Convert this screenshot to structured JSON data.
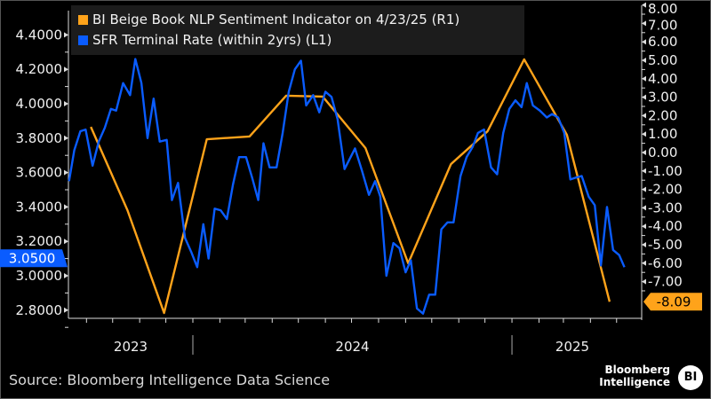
{
  "chart_data": {
    "type": "line",
    "title": "",
    "x_tick_labels": [
      "2023",
      "2024",
      "2025"
    ],
    "left_axis": {
      "ticks": [
        "4.4000",
        "4.2000",
        "4.0000",
        "3.8000",
        "3.6000",
        "3.4000",
        "3.2000",
        "3.0000",
        "2.8000"
      ],
      "range": [
        2.75,
        4.5
      ]
    },
    "right_axis": {
      "ticks": [
        "8.00",
        "7.00",
        "6.00",
        "5.00",
        "4.00",
        "3.00",
        "2.00",
        "1.00",
        "0.00",
        "-1.00",
        "-2.00",
        "-3.00",
        "-4.00",
        "-5.00",
        "-6.00",
        "-7.00"
      ],
      "range": [
        -9,
        8
      ]
    },
    "legend_position": "top-left",
    "grid": false,
    "series": [
      {
        "name": "BI Beige Book NLP Sentiment Indicator on 4/23/25 (R1)",
        "axis": "right",
        "color": "#ffa31a",
        "last_value_label": "-8.09",
        "points": [
          [
            "2023-09-06",
            1.39
          ],
          [
            "2023-10-18",
            -3.13
          ],
          [
            "2023-11-29",
            -8.7
          ],
          [
            "2024-01-17",
            0.72
          ],
          [
            "2024-03-06",
            0.87
          ],
          [
            "2024-04-17",
            3.08
          ],
          [
            "2024-05-29",
            3.03
          ],
          [
            "2024-07-17",
            0.24
          ],
          [
            "2024-09-04",
            -6.01
          ],
          [
            "2024-10-23",
            -0.63
          ],
          [
            "2024-12-04",
            1.15
          ],
          [
            "2025-01-15",
            5.05
          ],
          [
            "2025-03-05",
            0.96
          ],
          [
            "2025-04-23",
            -8.09
          ]
        ]
      },
      {
        "name": "SFR Terminal Rate (within 2yrs) (L1)",
        "axis": "left",
        "color": "#0a5cff",
        "last_value_label": "3.0500",
        "points": [
          [
            "2023-08-12",
            3.55
          ],
          [
            "2023-08-18",
            3.73
          ],
          [
            "2023-08-25",
            3.84
          ],
          [
            "2023-08-31",
            3.85
          ],
          [
            "2023-09-08",
            3.64
          ],
          [
            "2023-09-15",
            3.78
          ],
          [
            "2023-09-22",
            3.86
          ],
          [
            "2023-09-29",
            3.97
          ],
          [
            "2023-10-05",
            3.96
          ],
          [
            "2023-10-13",
            4.12
          ],
          [
            "2023-10-21",
            4.05
          ],
          [
            "2023-10-27",
            4.26
          ],
          [
            "2023-11-03",
            4.12
          ],
          [
            "2023-11-10",
            3.8
          ],
          [
            "2023-11-17",
            4.03
          ],
          [
            "2023-11-24",
            3.78
          ],
          [
            "2023-12-02",
            3.79
          ],
          [
            "2023-12-08",
            3.44
          ],
          [
            "2023-12-15",
            3.54
          ],
          [
            "2023-12-23",
            3.22
          ],
          [
            "2023-12-30",
            3.14
          ],
          [
            "2024-01-06",
            3.05
          ],
          [
            "2024-01-13",
            3.3
          ],
          [
            "2024-01-19",
            3.1
          ],
          [
            "2024-01-26",
            3.39
          ],
          [
            "2024-02-02",
            3.38
          ],
          [
            "2024-02-09",
            3.33
          ],
          [
            "2024-02-16",
            3.53
          ],
          [
            "2024-02-23",
            3.69
          ],
          [
            "2024-03-02",
            3.69
          ],
          [
            "2024-03-09",
            3.57
          ],
          [
            "2024-03-16",
            3.44
          ],
          [
            "2024-03-22",
            3.77
          ],
          [
            "2024-03-29",
            3.63
          ],
          [
            "2024-04-06",
            3.63
          ],
          [
            "2024-04-13",
            3.83
          ],
          [
            "2024-04-20",
            4.07
          ],
          [
            "2024-04-27",
            4.2
          ],
          [
            "2024-05-04",
            4.25
          ],
          [
            "2024-05-10",
            3.99
          ],
          [
            "2024-05-18",
            4.05
          ],
          [
            "2024-05-25",
            3.95
          ],
          [
            "2024-06-01",
            4.07
          ],
          [
            "2024-06-08",
            4.04
          ],
          [
            "2024-06-15",
            3.91
          ],
          [
            "2024-06-23",
            3.62
          ],
          [
            "2024-06-29",
            3.68
          ],
          [
            "2024-07-05",
            3.74
          ],
          [
            "2024-07-13",
            3.61
          ],
          [
            "2024-07-21",
            3.47
          ],
          [
            "2024-07-28",
            3.55
          ],
          [
            "2024-08-03",
            3.46
          ],
          [
            "2024-08-10",
            3.0
          ],
          [
            "2024-08-18",
            3.19
          ],
          [
            "2024-08-25",
            3.16
          ],
          [
            "2024-09-01",
            3.02
          ],
          [
            "2024-09-07",
            3.09
          ],
          [
            "2024-09-14",
            2.81
          ],
          [
            "2024-09-21",
            2.78
          ],
          [
            "2024-09-28",
            2.89
          ],
          [
            "2024-10-05",
            2.89
          ],
          [
            "2024-10-12",
            3.27
          ],
          [
            "2024-10-19",
            3.31
          ],
          [
            "2024-10-26",
            3.31
          ],
          [
            "2024-11-03",
            3.58
          ],
          [
            "2024-11-10",
            3.69
          ],
          [
            "2024-11-17",
            3.75
          ],
          [
            "2024-11-23",
            3.83
          ],
          [
            "2024-11-30",
            3.85
          ],
          [
            "2024-12-08",
            3.63
          ],
          [
            "2024-12-15",
            3.59
          ],
          [
            "2024-12-22",
            3.83
          ],
          [
            "2024-12-29",
            3.97
          ],
          [
            "2025-01-05",
            4.02
          ],
          [
            "2025-01-12",
            3.98
          ],
          [
            "2025-01-18",
            4.12
          ],
          [
            "2025-01-25",
            3.99
          ],
          [
            "2025-02-02",
            3.96
          ],
          [
            "2025-02-10",
            3.92
          ],
          [
            "2025-02-16",
            3.94
          ],
          [
            "2025-02-23",
            3.92
          ],
          [
            "2025-03-02",
            3.83
          ],
          [
            "2025-03-09",
            3.56
          ],
          [
            "2025-03-15",
            3.57
          ],
          [
            "2025-03-22",
            3.58
          ],
          [
            "2025-03-30",
            3.46
          ],
          [
            "2025-04-06",
            3.41
          ],
          [
            "2025-04-13",
            3.06
          ],
          [
            "2025-04-20",
            3.4
          ],
          [
            "2025-04-27",
            3.15
          ],
          [
            "2025-05-04",
            3.12
          ],
          [
            "2025-05-10",
            3.05
          ]
        ]
      }
    ]
  },
  "legend": {
    "items": [
      {
        "label": "BI Beige Book NLP Sentiment Indicator on 4/23/25 (R1)",
        "color": "#ffa31a"
      },
      {
        "label": "SFR Terminal Rate (within 2yrs) (L1)",
        "color": "#0a5cff"
      }
    ]
  },
  "footer": {
    "source": "Source: Bloomberg Intelligence Data Science",
    "logo_line1": "Bloomberg",
    "logo_line2": "Intelligence",
    "logo_badge": "BI"
  }
}
